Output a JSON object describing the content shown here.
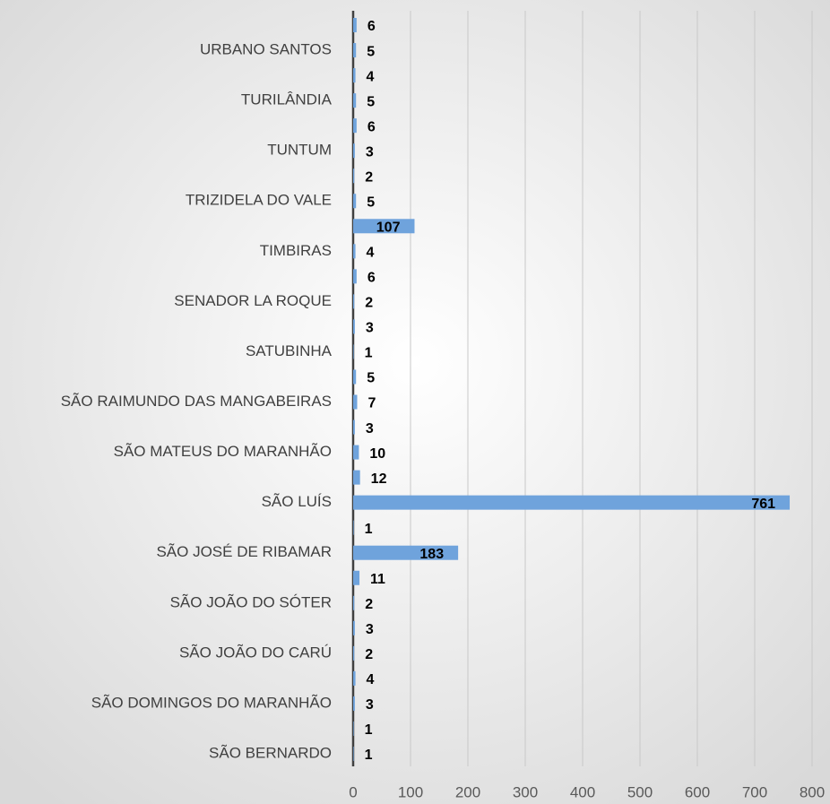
{
  "chart_data": {
    "type": "barh",
    "categories": [
      "SÃO BERNARDO",
      null,
      "SÃO DOMINGOS DO MARANHÃO",
      null,
      "SÃO JOÃO DO CARÚ",
      null,
      "SÃO JOÃO DO SÓTER",
      null,
      "SÃO JOSÉ DE RIBAMAR",
      null,
      "SÃO LUÍS",
      null,
      "SÃO MATEUS DO MARANHÃO",
      null,
      "SÃO RAIMUNDO DAS MANGABEIRAS",
      null,
      "SATUBINHA",
      null,
      "SENADOR LA ROQUE",
      null,
      "TIMBIRAS",
      null,
      "TRIZIDELA DO VALE",
      null,
      "TUNTUM",
      null,
      "TURILÂNDIA",
      null,
      "URBANO SANTOS",
      null
    ],
    "values": [
      1,
      1,
      3,
      4,
      2,
      3,
      2,
      11,
      183,
      1,
      761,
      12,
      10,
      3,
      7,
      5,
      1,
      3,
      2,
      6,
      4,
      107,
      5,
      2,
      3,
      6,
      5,
      4,
      5,
      6
    ],
    "color": "#6fa3dc",
    "xlim": [
      0,
      800
    ],
    "xticks": [
      0,
      100,
      200,
      300,
      400,
      500,
      600,
      700,
      800
    ],
    "grid": true
  }
}
